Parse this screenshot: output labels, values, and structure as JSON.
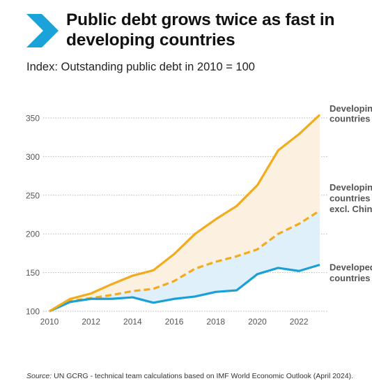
{
  "header": {
    "title": "Public debt grows twice as fast in developing countries",
    "subtitle": "Index: Outstanding public debt in 2010 = 100",
    "logo_icon": "chevron-right-icon",
    "logo_color": "#1aa3d9"
  },
  "chart_data": {
    "type": "line",
    "title": "Public debt grows twice as fast in developing countries",
    "ylabel": "Index: Outstanding public debt in 2010 = 100",
    "xlabel": "",
    "xlim": [
      2010,
      2023
    ],
    "ylim": [
      100,
      360
    ],
    "x_ticks": [
      2010,
      2012,
      2014,
      2016,
      2018,
      2020,
      2022
    ],
    "y_ticks": [
      100,
      150,
      200,
      250,
      300,
      350
    ],
    "grid": "horizontal dotted",
    "legend": "right",
    "x": [
      2010,
      2011,
      2012,
      2013,
      2014,
      2015,
      2016,
      2017,
      2018,
      2019,
      2020,
      2021,
      2022,
      2023
    ],
    "series": [
      {
        "name": "Developing countries",
        "label_lines": [
          "Developing",
          "countries"
        ],
        "color": "#f2ab1d",
        "style": "solid",
        "values": [
          100,
          116,
          123,
          135,
          146,
          153,
          174,
          200,
          219,
          236,
          263,
          308,
          329,
          354
        ]
      },
      {
        "name": "Developing countries excl. China",
        "label_lines": [
          "Developing",
          "countries",
          "excl. China"
        ],
        "color": "#f2ab1d",
        "style": "dashed",
        "values": [
          100,
          113,
          117,
          121,
          126,
          129,
          139,
          155,
          164,
          171,
          180,
          200,
          213,
          230
        ]
      },
      {
        "name": "Developed countries",
        "label_lines": [
          "Developed",
          "countries"
        ],
        "color": "#1a9fd6",
        "style": "solid",
        "values": [
          100,
          112,
          116,
          116,
          118,
          111,
          116,
          119,
          125,
          127,
          148,
          156,
          152,
          160
        ]
      }
    ],
    "fill_colors": {
      "developing_band": "#fcf1e0",
      "developed_band": "#dff0fa"
    }
  },
  "footer": {
    "source_label": "Source:",
    "source_text": " UN GCRG - technical team calculations based on IMF World Economic Outlook (April 2024)."
  }
}
